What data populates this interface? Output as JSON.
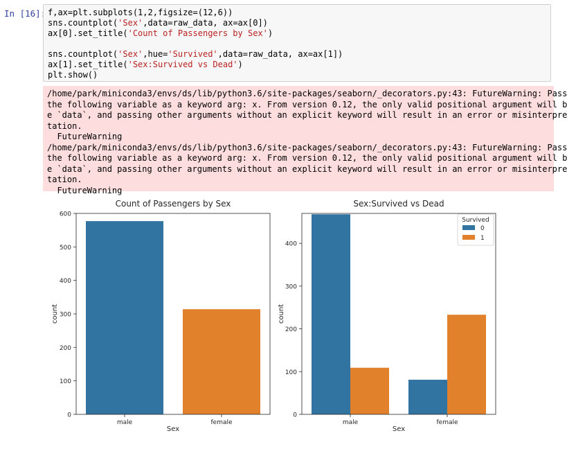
{
  "prompt": "In [16]:",
  "code": {
    "line1": "f,ax=plt.subplots(1,2,figsize=(12,6))",
    "line2_a": "sns.countplot(",
    "line2_s1": "'Sex'",
    "line2_b": ",data=raw_data, ax=ax[0])",
    "line3_a": "ax[0].set_title(",
    "line3_s1": "'Count of Passengers by Sex'",
    "line3_b": ")",
    "line5_a": "sns.countplot(",
    "line5_s1": "'Sex'",
    "line5_b": ",hue=",
    "line5_s2": "'Survived'",
    "line5_c": ",data=raw_data, ax=ax[1])",
    "line6_a": "ax[1].set_title(",
    "line6_s1": "'Sex:Survived vs Dead'",
    "line6_b": ")",
    "line7": "plt.show()"
  },
  "stderr": [
    "/home/park/miniconda3/envs/ds/lib/python3.6/site-packages/seaborn/_decorators.py:43: FutureWarning: Pass",
    "the following variable as a keyword arg: x. From version 0.12, the only valid positional argument will b",
    "e `data`, and passing other arguments without an explicit keyword will result in an error or misinterpre",
    "tation.",
    "  FutureWarning",
    "/home/park/miniconda3/envs/ds/lib/python3.6/site-packages/seaborn/_decorators.py:43: FutureWarning: Pass",
    "the following variable as a keyword arg: x. From version 0.12, the only valid positional argument will b",
    "e `data`, and passing other arguments without an explicit keyword will result in an error or misinterpre",
    "tation.",
    "  FutureWarning"
  ],
  "colors": {
    "series0": "#3274a1",
    "series1": "#e1812c"
  },
  "chart_data": [
    {
      "type": "bar",
      "title": "Count of Passengers by Sex",
      "xlabel": "Sex",
      "ylabel": "count",
      "categories": [
        "male",
        "female"
      ],
      "values": [
        577,
        314
      ],
      "ylim": [
        0,
        600
      ],
      "yticks": [
        0,
        100,
        200,
        300,
        400,
        500,
        600
      ],
      "bar_colors": [
        "#3274a1",
        "#e1812c"
      ]
    },
    {
      "type": "bar",
      "title": "Sex:Survived vs Dead",
      "xlabel": "Sex",
      "ylabel": "count",
      "categories": [
        "male",
        "female"
      ],
      "legend_title": "Survived",
      "legend_position": "top-right",
      "series": [
        {
          "name": "0",
          "values": [
            468,
            81
          ]
        },
        {
          "name": "1",
          "values": [
            109,
            233
          ]
        }
      ],
      "ylim": [
        0,
        470
      ],
      "yticks": [
        0,
        100,
        200,
        300,
        400
      ]
    }
  ]
}
